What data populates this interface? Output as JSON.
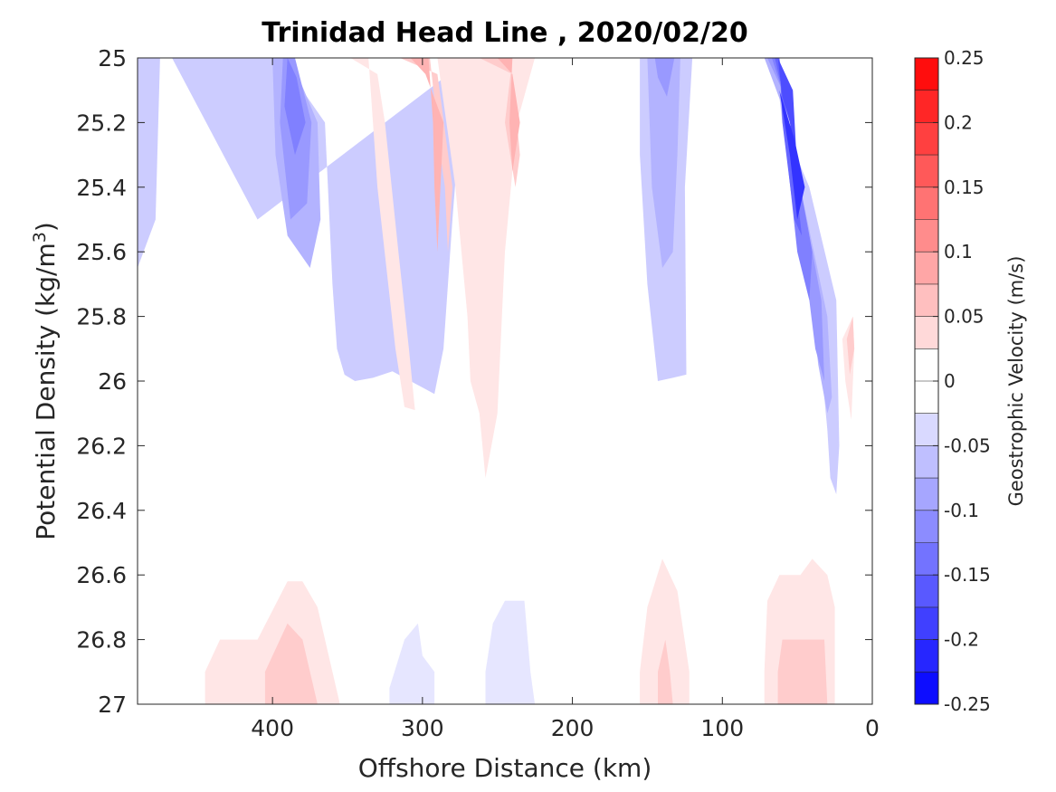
{
  "chart_data": {
    "type": "contour",
    "title": "Trinidad Head Line , 2020/02/20",
    "xlabel": "Offshore Distance (km)",
    "ylabel_text": "Potential Density (kg/m",
    "ylabel_sup": "3",
    "ylabel_close": ")",
    "x_reversed": true,
    "xlim": [
      0,
      490
    ],
    "ylim": [
      25,
      27
    ],
    "y_reversed": true,
    "xticks": [
      400,
      300,
      200,
      100,
      0
    ],
    "yticks": [
      "25",
      "25.2",
      "25.4",
      "25.6",
      "25.8",
      "26",
      "26.2",
      "26.4",
      "26.6",
      "26.8",
      "27"
    ],
    "yticks_values": [
      25,
      25.2,
      25.4,
      25.6,
      25.8,
      26,
      26.2,
      26.4,
      26.6,
      26.8,
      27
    ],
    "colorbar": {
      "label": "Geostrophic Velocity (m/s)",
      "range": [
        -0.25,
        0.25
      ],
      "step": 0.025,
      "ticks": [
        "0.25",
        "0.2",
        "0.15",
        "0.1",
        "0.05",
        "0",
        "-0.05",
        "-0.1",
        "-0.15",
        "-0.2",
        "-0.25"
      ],
      "tick_values": [
        0.25,
        0.2,
        0.15,
        0.1,
        0.05,
        0,
        -0.05,
        -0.1,
        -0.15,
        -0.2,
        -0.25
      ],
      "neg_color": "#0000ff",
      "pos_color": "#ff0000",
      "zero_color": "#ffffff"
    },
    "regions": [
      {
        "name": "far-offshore-negative-edge",
        "level": -0.05,
        "points": [
          [
            490,
            25
          ],
          [
            475,
            25
          ],
          [
            478,
            25.5
          ],
          [
            490,
            25.65
          ]
        ]
      },
      {
        "name": "offshore-negative-jet-outer",
        "level": -0.05,
        "points": [
          [
            467,
            25
          ],
          [
            395,
            25
          ],
          [
            365,
            25.2
          ],
          [
            360,
            25.7
          ],
          [
            357,
            25.9
          ],
          [
            352,
            25.98
          ],
          [
            345,
            26
          ],
          [
            333,
            25.99
          ],
          [
            320,
            25.97
          ],
          [
            308,
            26
          ],
          [
            300,
            26.02
          ],
          [
            292,
            26.04
          ],
          [
            286,
            25.9
          ],
          [
            280,
            25.5
          ],
          [
            275,
            25.2
          ],
          [
            265,
            25.05
          ],
          [
            257,
            25
          ],
          [
            240,
            24.9
          ],
          [
            410,
            25.5
          ],
          [
            467,
            25
          ]
        ]
      },
      {
        "name": "offshore-negative-jet-mid",
        "level": -0.075,
        "points": [
          [
            400,
            25
          ],
          [
            388,
            25
          ],
          [
            370,
            25.2
          ],
          [
            368,
            25.5
          ],
          [
            375,
            25.65
          ],
          [
            390,
            25.55
          ],
          [
            398,
            25.3
          ]
        ]
      },
      {
        "name": "offshore-negative-jet-core",
        "level": -0.1,
        "points": [
          [
            393,
            25
          ],
          [
            385,
            25
          ],
          [
            374,
            25.2
          ],
          [
            377,
            25.45
          ],
          [
            388,
            25.5
          ],
          [
            395,
            25.2
          ]
        ]
      },
      {
        "name": "offshore-negative-jet-peak",
        "level": -0.125,
        "points": [
          [
            390,
            25
          ],
          [
            384,
            25.06
          ],
          [
            378,
            25.2
          ],
          [
            385,
            25.3
          ],
          [
            392,
            25.15
          ]
        ]
      },
      {
        "name": "nearshore-slope-negative-outer",
        "level": -0.05,
        "points": [
          [
            155,
            25
          ],
          [
            120,
            25
          ],
          [
            125,
            25.4
          ],
          [
            124,
            25.98
          ],
          [
            133,
            25.99
          ],
          [
            143,
            26
          ],
          [
            150,
            25.7
          ],
          [
            155,
            25.3
          ]
        ]
      },
      {
        "name": "nearshore-slope-negative-mid",
        "level": -0.075,
        "points": [
          [
            150,
            25
          ],
          [
            128,
            25
          ],
          [
            130,
            25.3
          ],
          [
            133,
            25.6
          ],
          [
            140,
            25.65
          ],
          [
            147,
            25.4
          ]
        ]
      },
      {
        "name": "nearshore-slope-negative-core",
        "level": -0.1,
        "points": [
          [
            145,
            25
          ],
          [
            132,
            25
          ],
          [
            137,
            25.12
          ],
          [
            143,
            25.06
          ]
        ]
      },
      {
        "name": "coastal-negative-jet-1",
        "level": -0.05,
        "points": [
          [
            75,
            25
          ],
          [
            62,
            25
          ],
          [
            45,
            25.5
          ],
          [
            37,
            25.9
          ],
          [
            33,
            26.0
          ],
          [
            30,
            26.15
          ],
          [
            28,
            26.3
          ],
          [
            24,
            26.35
          ],
          [
            22,
            26.2
          ],
          [
            24,
            25.75
          ],
          [
            42,
            25.4
          ],
          [
            60,
            25.2
          ],
          [
            65,
            25.0
          ]
        ]
      },
      {
        "name": "coastal-negative-jet-2",
        "level": -0.075,
        "points": [
          [
            72,
            25
          ],
          [
            62,
            25
          ],
          [
            50,
            25.4
          ],
          [
            42,
            25.7
          ],
          [
            36,
            25.95
          ],
          [
            30,
            26.1
          ],
          [
            27,
            26.05
          ],
          [
            30,
            25.8
          ],
          [
            48,
            25.4
          ],
          [
            60,
            25.15
          ]
        ]
      },
      {
        "name": "coastal-negative-jet-3",
        "level": -0.1,
        "points": [
          [
            70,
            25
          ],
          [
            62,
            25
          ],
          [
            54,
            25.3
          ],
          [
            46,
            25.6
          ],
          [
            38,
            25.9
          ],
          [
            32,
            26.0
          ],
          [
            34,
            25.75
          ],
          [
            48,
            25.4
          ],
          [
            60,
            25.1
          ]
        ]
      },
      {
        "name": "coastal-negative-jet-4",
        "level": -0.125,
        "points": [
          [
            67,
            25
          ],
          [
            62,
            25
          ],
          [
            57,
            25.3
          ],
          [
            50,
            25.6
          ],
          [
            42,
            25.75
          ],
          [
            40,
            25.6
          ],
          [
            52,
            25.3
          ],
          [
            60,
            25.1
          ]
        ]
      },
      {
        "name": "coastal-negative-jet-5",
        "level": -0.15,
        "points": [
          [
            65,
            25
          ],
          [
            62,
            25
          ],
          [
            60,
            25.2
          ],
          [
            52,
            25.5
          ],
          [
            47,
            25.55
          ],
          [
            53,
            25.3
          ],
          [
            60,
            25.1
          ]
        ]
      },
      {
        "name": "coastal-negative-jet-6",
        "level": -0.175,
        "points": [
          [
            63,
            25
          ],
          [
            60,
            25.12
          ],
          [
            55,
            25.2
          ],
          [
            50,
            25.35
          ],
          [
            53,
            25.1
          ]
        ]
      },
      {
        "name": "coastal-negative-jet-7",
        "level": -0.2,
        "points": [
          [
            62,
            25.1
          ],
          [
            55,
            25.3
          ],
          [
            50,
            25.5
          ],
          [
            45,
            25.4
          ],
          [
            52,
            25.25
          ]
        ]
      },
      {
        "name": "ridge-positive-1",
        "level": 0.025,
        "points": [
          [
            348,
            25
          ],
          [
            336,
            25
          ],
          [
            330,
            25.4
          ],
          [
            318,
            25.9
          ],
          [
            312,
            26.08
          ],
          [
            305,
            26.09
          ],
          [
            309,
            25.9
          ],
          [
            316,
            25.6
          ],
          [
            325,
            25.2
          ],
          [
            330,
            25.05
          ]
        ]
      },
      {
        "name": "ridge-positive-2",
        "level": 0.025,
        "points": [
          [
            327,
            25
          ],
          [
            290,
            25
          ],
          [
            278,
            25.4
          ],
          [
            270,
            25.8
          ],
          [
            268,
            26.0
          ],
          [
            262,
            26.1
          ],
          [
            258,
            26.3
          ],
          [
            250,
            26.1
          ],
          [
            245,
            25.6
          ],
          [
            237,
            25.2
          ],
          [
            225,
            25.0
          ]
        ]
      },
      {
        "name": "ridge-positive-3",
        "level": 0.05,
        "points": [
          [
            315,
            25
          ],
          [
            295,
            25
          ],
          [
            288,
            25.3
          ],
          [
            285,
            25.4
          ],
          [
            283,
            25.6
          ],
          [
            280,
            25.4
          ],
          [
            290,
            25.05
          ]
        ]
      },
      {
        "name": "ridge-positive-4",
        "level": 0.05,
        "points": [
          [
            262,
            25
          ],
          [
            240,
            25
          ],
          [
            245,
            25.2
          ],
          [
            238,
            25.4
          ],
          [
            235,
            25.3
          ],
          [
            240,
            25.05
          ]
        ]
      },
      {
        "name": "ridge-positive-5",
        "level": 0.075,
        "points": [
          [
            308,
            25
          ],
          [
            296,
            25
          ],
          [
            293,
            25.2
          ],
          [
            292,
            25.4
          ],
          [
            290,
            25.6
          ],
          [
            286,
            25.2
          ],
          [
            298,
            25.05
          ]
        ]
      },
      {
        "name": "ridge-positive-6",
        "level": 0.075,
        "points": [
          [
            250,
            25
          ],
          [
            240,
            25
          ],
          [
            242,
            25.2
          ],
          [
            240,
            25.35
          ],
          [
            235,
            25.2
          ],
          [
            240,
            25.05
          ]
        ]
      },
      {
        "name": "coastal-positive-tongue",
        "level": 0.025,
        "points": [
          [
            20,
            25.87
          ],
          [
            13,
            25.8
          ],
          [
            12,
            25.9
          ],
          [
            14,
            26.12
          ],
          [
            18,
            26.0
          ]
        ]
      },
      {
        "name": "coastal-positive-tongue-core",
        "level": 0.05,
        "points": [
          [
            17,
            25.87
          ],
          [
            13,
            25.8
          ],
          [
            12,
            25.9
          ],
          [
            15,
            25.98
          ]
        ]
      },
      {
        "name": "deep-positive-1",
        "level": 0.025,
        "points": [
          [
            445,
            26.9
          ],
          [
            435,
            26.8
          ],
          [
            410,
            26.8
          ],
          [
            390,
            26.62
          ],
          [
            380,
            26.62
          ],
          [
            370,
            26.7
          ],
          [
            360,
            26.9
          ],
          [
            355,
            27
          ],
          [
            445,
            27
          ]
        ]
      },
      {
        "name": "deep-positive-1-core",
        "level": 0.05,
        "points": [
          [
            405,
            26.9
          ],
          [
            390,
            26.75
          ],
          [
            380,
            26.8
          ],
          [
            375,
            26.9
          ],
          [
            370,
            27
          ],
          [
            405,
            27
          ]
        ]
      },
      {
        "name": "deep-positive-2",
        "level": 0.025,
        "points": [
          [
            155,
            26.9
          ],
          [
            150,
            26.7
          ],
          [
            140,
            26.55
          ],
          [
            130,
            26.65
          ],
          [
            122,
            26.9
          ],
          [
            122,
            27
          ],
          [
            155,
            27
          ]
        ]
      },
      {
        "name": "deep-positive-2-core",
        "level": 0.05,
        "points": [
          [
            143,
            26.9
          ],
          [
            138,
            26.8
          ],
          [
            135,
            26.9
          ],
          [
            133,
            27
          ],
          [
            143,
            27
          ]
        ]
      },
      {
        "name": "deep-positive-3",
        "level": 0.025,
        "points": [
          [
            72,
            26.9
          ],
          [
            70,
            26.68
          ],
          [
            62,
            26.6
          ],
          [
            48,
            26.6
          ],
          [
            40,
            26.55
          ],
          [
            30,
            26.6
          ],
          [
            25,
            26.7
          ],
          [
            25,
            26.9
          ],
          [
            25,
            27
          ],
          [
            72,
            27
          ]
        ]
      },
      {
        "name": "deep-positive-3-core",
        "level": 0.05,
        "points": [
          [
            63,
            26.9
          ],
          [
            60,
            26.8
          ],
          [
            40,
            26.8
          ],
          [
            32,
            26.8
          ],
          [
            30,
            27
          ],
          [
            63,
            27
          ]
        ]
      },
      {
        "name": "deep-negative-1",
        "level": -0.025,
        "points": [
          [
            322,
            26.95
          ],
          [
            312,
            26.8
          ],
          [
            303,
            26.75
          ],
          [
            300,
            26.85
          ],
          [
            292,
            26.9
          ],
          [
            292,
            27
          ],
          [
            322,
            27
          ]
        ]
      },
      {
        "name": "deep-negative-2",
        "level": -0.025,
        "points": [
          [
            258,
            26.9
          ],
          [
            253,
            26.75
          ],
          [
            245,
            26.68
          ],
          [
            232,
            26.68
          ],
          [
            228,
            26.9
          ],
          [
            225,
            27
          ],
          [
            258,
            27
          ]
        ]
      }
    ]
  }
}
